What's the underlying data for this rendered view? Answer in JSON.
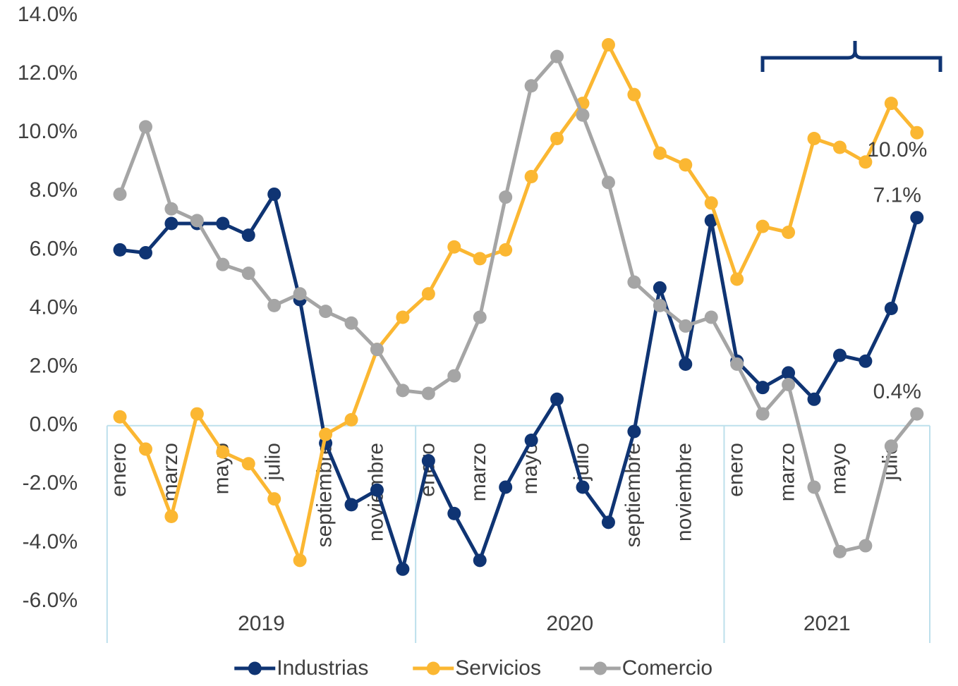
{
  "chart_data": {
    "type": "line",
    "categories": [
      "enero",
      null,
      "marzo",
      null,
      "mayo",
      null,
      "julio",
      null,
      "septiembre",
      null,
      "noviembre",
      null,
      "enero",
      null,
      "marzo",
      null,
      "mayo",
      null,
      "julio",
      null,
      "septiembre",
      null,
      "noviembre",
      null,
      "enero",
      null,
      "marzo",
      null,
      "mayo",
      null,
      "julio",
      null
    ],
    "x_groups": [
      "2019",
      "2020",
      "2021"
    ],
    "series": [
      {
        "name": "Industrias",
        "color": "#0f3473",
        "values": [
          6.0,
          5.9,
          6.9,
          6.9,
          6.9,
          6.5,
          7.9,
          4.3,
          -0.6,
          -2.7,
          -2.2,
          -4.9,
          -1.2,
          -3.0,
          -4.6,
          -2.1,
          -0.5,
          0.9,
          -2.1,
          -3.3,
          -0.2,
          4.7,
          2.1,
          7.0,
          2.2,
          1.3,
          1.8,
          0.9,
          2.4,
          2.2,
          4.0,
          7.1
        ],
        "value_labels": [
          null,
          null,
          null,
          null,
          null,
          null,
          null,
          null,
          null,
          null,
          null,
          null,
          null,
          null,
          null,
          null,
          null,
          null,
          null,
          null,
          null,
          null,
          null,
          null,
          null,
          null,
          null,
          null,
          null,
          null,
          null,
          "7.1%"
        ]
      },
      {
        "name": "Servicios",
        "color": "#fbb732",
        "values": [
          0.3,
          -0.8,
          -3.1,
          0.4,
          -0.9,
          -1.3,
          -2.5,
          -4.6,
          -0.3,
          0.2,
          2.6,
          3.7,
          4.5,
          6.1,
          5.7,
          6.0,
          8.5,
          9.8,
          11.0,
          13.0,
          11.3,
          9.3,
          8.9,
          7.6,
          5.0,
          6.8,
          6.6,
          9.8,
          9.5,
          9.0,
          11.0,
          10.0
        ],
        "value_labels": [
          null,
          null,
          null,
          null,
          null,
          null,
          null,
          null,
          null,
          null,
          null,
          null,
          null,
          null,
          null,
          null,
          null,
          null,
          null,
          null,
          null,
          null,
          null,
          null,
          null,
          null,
          null,
          null,
          null,
          null,
          null,
          "10.0%"
        ]
      },
      {
        "name": "Comercio",
        "color": "#a5a5a5",
        "values": [
          7.9,
          10.2,
          7.4,
          7.0,
          5.5,
          5.2,
          4.1,
          4.5,
          3.9,
          3.5,
          2.6,
          1.2,
          1.1,
          1.7,
          3.7,
          7.8,
          11.6,
          12.6,
          10.6,
          8.3,
          4.9,
          4.1,
          3.4,
          3.7,
          2.1,
          0.4,
          1.4,
          -2.1,
          -4.3,
          -4.1,
          -0.7,
          0.4
        ],
        "value_labels": [
          null,
          null,
          null,
          null,
          null,
          null,
          null,
          null,
          null,
          null,
          null,
          null,
          null,
          null,
          null,
          null,
          null,
          null,
          null,
          null,
          null,
          null,
          null,
          null,
          null,
          null,
          null,
          null,
          null,
          null,
          null,
          "0.4%"
        ]
      }
    ],
    "ylim": [
      -6,
      14
    ],
    "yticks": [
      {
        "value": -6,
        "label": "-6.0%"
      },
      {
        "value": -4,
        "label": "-4.0%"
      },
      {
        "value": -2,
        "label": "-2.0%"
      },
      {
        "value": 0,
        "label": "0.0%"
      },
      {
        "value": 2,
        "label": "2.0%"
      },
      {
        "value": 4,
        "label": "4.0%"
      },
      {
        "value": 6,
        "label": "6.0%"
      },
      {
        "value": 8,
        "label": "8.0%"
      },
      {
        "value": 10,
        "label": "10.0%"
      },
      {
        "value": 12,
        "label": "12.0%"
      },
      {
        "value": 14,
        "label": "14.0%"
      }
    ],
    "legend": "bottom"
  }
}
